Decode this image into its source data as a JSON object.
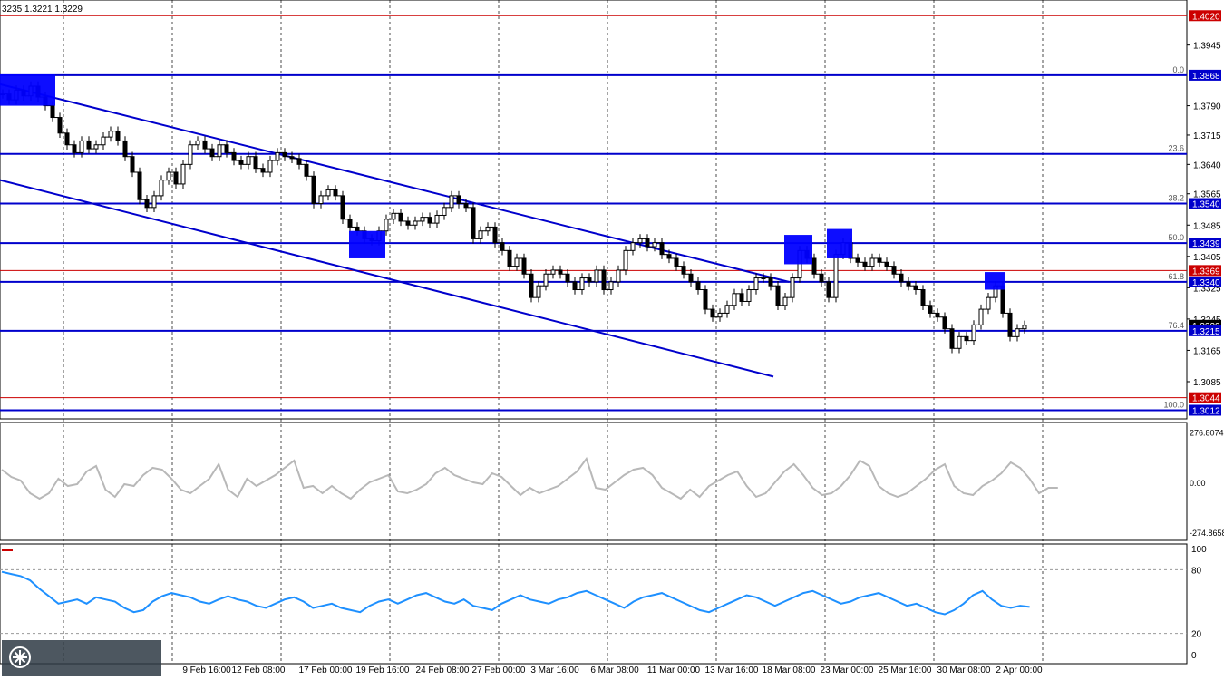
{
  "header": {
    "ohlc_text": "3235 1.3221 1.3229"
  },
  "colors": {
    "candle": "#000000",
    "level_line": "#0000cc",
    "red_line": "#cc0000",
    "grid": "#000000",
    "cci": "#b8b8b8",
    "rsi": "#1e90ff",
    "box": "#0000ff"
  },
  "chart_data": [
    {
      "type": "line",
      "name": "price",
      "y_ticks": [
        "1.3945",
        "1.3790",
        "1.3715",
        "1.3640",
        "1.3565",
        "1.3485",
        "1.3405",
        "1.3325",
        "1.3245",
        "1.3165",
        "1.3085"
      ],
      "ylim": [
        1.299,
        1.406
      ],
      "x_tick_labels": [
        "9 Feb 16:00",
        "12 Feb 08:00",
        "17 Feb 00:00",
        "19 Feb 16:00",
        "24 Feb 08:00",
        "27 Feb 00:00",
        "3 Mar 16:00",
        "6 Mar 08:00",
        "11 Mar 00:00",
        "13 Mar 16:00",
        "18 Mar 08:00",
        "23 Mar 00:00",
        "25 Mar 16:00",
        "30 Mar 08:00",
        "2 Apr 00:00"
      ],
      "price_tags": [
        {
          "value": 1.402,
          "label": "1.4020",
          "style": "red"
        },
        {
          "value": 1.3868,
          "label": "1.3868",
          "style": "blue"
        },
        {
          "value": 1.354,
          "label": "1.3540",
          "style": "blue"
        },
        {
          "value": 1.3439,
          "label": "1.3439",
          "style": "blue"
        },
        {
          "value": 1.3369,
          "label": "1.3369",
          "style": "red"
        },
        {
          "value": 1.334,
          "label": "1.3340",
          "style": "blue"
        },
        {
          "value": 1.3229,
          "label": "1.3229",
          "style": "black"
        },
        {
          "value": 1.3215,
          "label": "1.3215",
          "style": "blue"
        },
        {
          "value": 1.3044,
          "label": "1.3044",
          "style": "red"
        },
        {
          "value": 1.3012,
          "label": "1.3012",
          "style": "blue"
        }
      ],
      "fib_levels": [
        {
          "label": "0.0",
          "value": 1.3868
        },
        {
          "label": "23.6",
          "value": 1.3667
        },
        {
          "label": "38.2",
          "value": 1.354
        },
        {
          "label": "50.0",
          "value": 1.3439
        },
        {
          "label": "61.8",
          "value": 1.334
        },
        {
          "label": "76.4",
          "value": 1.3215
        },
        {
          "label": "100.0",
          "value": 1.3012
        }
      ],
      "horizontal_red": [
        1.402,
        1.3369,
        1.3044
      ],
      "channel_lines": [
        {
          "from": [
            0,
            1.3845
          ],
          "to": [
            870,
            1.334
          ]
        },
        {
          "from": [
            0,
            1.36
          ],
          "to": [
            853,
            1.3098
          ]
        }
      ],
      "series": [
        {
          "points": [
            [
              3,
              1.382
            ],
            [
              10,
              1.3805
            ],
            [
              18,
              1.383
            ],
            [
              26,
              1.3815
            ],
            [
              34,
              1.384
            ],
            [
              42,
              1.3812
            ],
            [
              50,
              1.379
            ],
            [
              58,
              1.376
            ],
            [
              66,
              1.372
            ],
            [
              74,
              1.369
            ],
            [
              82,
              1.367
            ],
            [
              90,
              1.37
            ],
            [
              98,
              1.368
            ],
            [
              106,
              1.369
            ],
            [
              114,
              1.371
            ],
            [
              122,
              1.3725
            ],
            [
              130,
              1.37
            ],
            [
              138,
              1.366
            ],
            [
              146,
              1.362
            ],
            [
              154,
              1.355
            ],
            [
              162,
              1.353
            ],
            [
              170,
              1.356
            ],
            [
              178,
              1.36
            ],
            [
              186,
              1.362
            ],
            [
              194,
              1.359
            ],
            [
              202,
              1.364
            ],
            [
              210,
              1.369
            ],
            [
              218,
              1.37
            ],
            [
              226,
              1.368
            ],
            [
              234,
              1.366
            ],
            [
              242,
              1.369
            ],
            [
              250,
              1.367
            ],
            [
              258,
              1.365
            ],
            [
              266,
              1.364
            ],
            [
              274,
              1.366
            ],
            [
              282,
              1.363
            ],
            [
              290,
              1.362
            ],
            [
              298,
              1.365
            ],
            [
              306,
              1.367
            ],
            [
              314,
              1.366
            ],
            [
              322,
              1.3655
            ],
            [
              330,
              1.364
            ],
            [
              338,
              1.361
            ],
            [
              346,
              1.354
            ],
            [
              354,
              1.356
            ],
            [
              362,
              1.3575
            ],
            [
              370,
              1.356
            ],
            [
              378,
              1.35
            ],
            [
              386,
              1.348
            ],
            [
              394,
              1.347
            ],
            [
              402,
              1.345
            ],
            [
              410,
              1.3445
            ],
            [
              418,
              1.347
            ],
            [
              426,
              1.35
            ],
            [
              434,
              1.3515
            ],
            [
              442,
              1.3495
            ],
            [
              450,
              1.3485
            ],
            [
              458,
              1.3495
            ],
            [
              466,
              1.3505
            ],
            [
              474,
              1.349
            ],
            [
              482,
              1.351
            ],
            [
              490,
              1.353
            ],
            [
              498,
              1.356
            ],
            [
              506,
              1.354
            ],
            [
              514,
              1.353
            ],
            [
              522,
              1.345
            ],
            [
              530,
              1.347
            ],
            [
              538,
              1.348
            ],
            [
              546,
              1.344
            ],
            [
              554,
              1.342
            ],
            [
              562,
              1.338
            ],
            [
              570,
              1.34
            ],
            [
              578,
              1.336
            ],
            [
              586,
              1.33
            ],
            [
              594,
              1.333
            ],
            [
              602,
              1.336
            ],
            [
              610,
              1.337
            ],
            [
              618,
              1.336
            ],
            [
              626,
              1.334
            ],
            [
              634,
              1.332
            ],
            [
              642,
              1.335
            ],
            [
              650,
              1.334
            ],
            [
              658,
              1.337
            ],
            [
              666,
              1.332
            ],
            [
              674,
              1.334
            ],
            [
              682,
              1.337
            ],
            [
              690,
              1.342
            ],
            [
              698,
              1.344
            ],
            [
              706,
              1.345
            ],
            [
              714,
              1.343
            ],
            [
              722,
              1.344
            ],
            [
              730,
              1.341
            ],
            [
              738,
              1.34
            ],
            [
              746,
              1.338
            ],
            [
              754,
              1.336
            ],
            [
              762,
              1.334
            ],
            [
              770,
              1.332
            ],
            [
              778,
              1.327
            ],
            [
              786,
              1.325
            ],
            [
              794,
              1.326
            ],
            [
              802,
              1.328
            ],
            [
              810,
              1.331
            ],
            [
              818,
              1.329
            ],
            [
              826,
              1.332
            ],
            [
              834,
              1.335
            ],
            [
              842,
              1.335
            ],
            [
              850,
              1.333
            ],
            [
              858,
              1.328
            ],
            [
              866,
              1.33
            ],
            [
              874,
              1.335
            ],
            [
              882,
              1.342
            ],
            [
              890,
              1.34
            ],
            [
              898,
              1.336
            ],
            [
              906,
              1.334
            ],
            [
              914,
              1.33
            ],
            [
              922,
              1.341
            ],
            [
              930,
              1.344
            ],
            [
              938,
              1.34
            ],
            [
              946,
              1.339
            ],
            [
              954,
              1.338
            ],
            [
              962,
              1.34
            ],
            [
              970,
              1.339
            ],
            [
              978,
              1.338
            ],
            [
              986,
              1.336
            ],
            [
              994,
              1.334
            ],
            [
              1002,
              1.333
            ],
            [
              1010,
              1.332
            ],
            [
              1018,
              1.328
            ],
            [
              1026,
              1.326
            ],
            [
              1034,
              1.325
            ],
            [
              1042,
              1.322
            ],
            [
              1050,
              1.317
            ],
            [
              1058,
              1.32
            ],
            [
              1066,
              1.319
            ],
            [
              1074,
              1.323
            ],
            [
              1082,
              1.327
            ],
            [
              1090,
              1.33
            ],
            [
              1098,
              1.333
            ],
            [
              1106,
              1.326
            ],
            [
              1114,
              1.32
            ],
            [
              1122,
              1.322
            ],
            [
              1130,
              1.3229
            ]
          ]
        }
      ],
      "boxes": [
        {
          "x0": 0,
          "x1": 61,
          "top": 1.387,
          "bottom": 1.379
        },
        {
          "x0": 385,
          "x1": 425,
          "top": 1.347,
          "bottom": 1.34
        },
        {
          "x0": 865,
          "x1": 896,
          "top": 1.346,
          "bottom": 1.3385
        },
        {
          "x0": 912,
          "x1": 940,
          "top": 1.3475,
          "bottom": 1.34
        },
        {
          "x0": 1086,
          "x1": 1109,
          "top": 1.3365,
          "bottom": 1.332
        }
      ]
    },
    {
      "type": "line",
      "name": "cci",
      "y_ticks": [
        "276.8074",
        "0.00",
        "-274.8658"
      ],
      "ylim": [
        -300,
        300
      ],
      "values": [
        70,
        30,
        10,
        -60,
        -90,
        -60,
        20,
        -20,
        -10,
        60,
        90,
        -40,
        -80,
        -10,
        -20,
        40,
        80,
        70,
        20,
        -40,
        -60,
        -20,
        20,
        100,
        -40,
        -80,
        20,
        -20,
        10,
        40,
        80,
        120,
        -30,
        -20,
        -60,
        -20,
        -60,
        -90,
        -40,
        0,
        20,
        40,
        -50,
        -60,
        -40,
        -10,
        50,
        80,
        40,
        20,
        0,
        -10,
        50,
        30,
        -20,
        -70,
        -30,
        -60,
        -40,
        -20,
        20,
        60,
        130,
        -30,
        -40,
        0,
        40,
        70,
        80,
        40,
        -30,
        -60,
        -90,
        -40,
        -80,
        -20,
        10,
        40,
        60,
        -20,
        -80,
        -60,
        0,
        60,
        100,
        40,
        -30,
        -70,
        -60,
        -20,
        40,
        120,
        90,
        -20,
        -60,
        -80,
        -60,
        -20,
        20,
        70,
        100,
        -20,
        -60,
        -70,
        -20,
        10,
        50,
        110,
        80,
        20,
        -60,
        -30,
        -30
      ]
    },
    {
      "type": "line",
      "name": "rsi",
      "y_ticks": [
        "100",
        "80",
        "20",
        "0"
      ],
      "ylim": [
        0,
        100
      ],
      "values": [
        78,
        76,
        74,
        70,
        62,
        55,
        48,
        50,
        52,
        48,
        54,
        52,
        50,
        44,
        40,
        42,
        50,
        55,
        58,
        56,
        54,
        50,
        48,
        52,
        55,
        52,
        50,
        46,
        44,
        48,
        52,
        54,
        50,
        44,
        46,
        48,
        44,
        42,
        40,
        46,
        50,
        52,
        48,
        52,
        56,
        58,
        54,
        50,
        48,
        52,
        46,
        44,
        42,
        48,
        52,
        56,
        52,
        50,
        48,
        52,
        54,
        58,
        60,
        56,
        52,
        48,
        44,
        50,
        54,
        56,
        58,
        54,
        50,
        46,
        42,
        40,
        44,
        48,
        52,
        56,
        54,
        50,
        46,
        50,
        54,
        58,
        60,
        56,
        52,
        48,
        50,
        54,
        56,
        58,
        54,
        50,
        46,
        48,
        44,
        40,
        38,
        42,
        48,
        56,
        60,
        52,
        46,
        44,
        46,
        45
      ]
    }
  ]
}
